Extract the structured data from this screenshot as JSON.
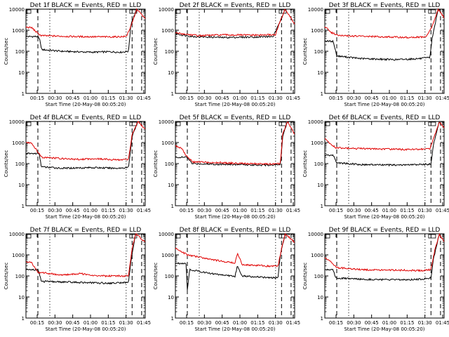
{
  "figure": {
    "background": "#ffffff",
    "axis_color": "#000000",
    "events_color": "#000000",
    "lld_color": "#e00000"
  },
  "chart_data": [
    {
      "type": "line",
      "title": "Det 1f BLACK = Events, RED = LLD",
      "xlabel": "Start Time (20-May-08 00:05:20)",
      "ylabel": "Counts/sec",
      "y_scale": "log",
      "ylim": [
        1,
        10000
      ],
      "x_ticks": [
        "00:15",
        "00:30",
        "00:45",
        "01:00",
        "01:15",
        "01:30",
        "01:45"
      ],
      "y_ticks": [
        "1",
        "10",
        "100",
        "1000",
        "10000"
      ],
      "series": [
        {
          "name": "Events",
          "color": "#000000",
          "values": [
            [
              0.1,
              500
            ],
            [
              0.12,
              300
            ],
            [
              0.13,
              120
            ],
            [
              0.3,
              100
            ],
            [
              0.55,
              90
            ],
            [
              0.7,
              95
            ],
            [
              0.8,
              90
            ],
            [
              0.86,
              100
            ],
            [
              0.88,
              2000
            ],
            [
              0.93,
              10000
            ]
          ]
        },
        {
          "name": "LLD",
          "color": "#e00000",
          "values": [
            [
              0.0,
              1400
            ],
            [
              0.05,
              1300
            ],
            [
              0.1,
              700
            ],
            [
              0.13,
              550
            ],
            [
              0.4,
              500
            ],
            [
              0.7,
              480
            ],
            [
              0.84,
              500
            ],
            [
              0.88,
              1500
            ],
            [
              0.93,
              10000
            ],
            [
              1.0,
              3500
            ]
          ]
        }
      ]
    },
    {
      "type": "line",
      "title": "Det 2f BLACK = Events, RED = LLD",
      "xlabel": "Start Time (20-May-08 00:05:20)",
      "ylabel": "Counts/sec",
      "y_scale": "log",
      "ylim": [
        1,
        10000
      ],
      "x_ticks": [
        "00:15",
        "00:30",
        "00:45",
        "01:00",
        "01:15",
        "01:30",
        "01:45"
      ],
      "y_ticks": [
        "1",
        "10",
        "100",
        "1000",
        "10000"
      ],
      "series": [
        {
          "name": "Events",
          "color": "#000000",
          "values": [
            [
              0.0,
              700
            ],
            [
              0.05,
              600
            ],
            [
              0.15,
              500
            ],
            [
              0.4,
              450
            ],
            [
              0.7,
              480
            ],
            [
              0.82,
              500
            ],
            [
              0.86,
              1500
            ],
            [
              0.92,
              10000
            ]
          ]
        },
        {
          "name": "LLD",
          "color": "#e00000",
          "values": [
            [
              0.0,
              750
            ],
            [
              0.08,
              650
            ],
            [
              0.2,
              550
            ],
            [
              0.4,
              600
            ],
            [
              0.7,
              580
            ],
            [
              0.84,
              620
            ],
            [
              0.87,
              2000
            ],
            [
              0.92,
              10000
            ],
            [
              1.0,
              2000
            ]
          ]
        }
      ]
    },
    {
      "type": "line",
      "title": "Det 3f BLACK = Events, RED = LLD",
      "xlabel": "Start Time (20-May-08 00:05:20)",
      "ylabel": "Counts/sec",
      "y_scale": "log",
      "ylim": [
        1,
        10000
      ],
      "x_ticks": [
        "00:15",
        "00:30",
        "00:45",
        "01:00",
        "01:15",
        "01:30",
        "01:45"
      ],
      "y_ticks": [
        "1",
        "10",
        "100",
        "1000",
        "10000"
      ],
      "series": [
        {
          "name": "Events",
          "color": "#000000",
          "values": [
            [
              0.07,
              300
            ],
            [
              0.1,
              60
            ],
            [
              0.3,
              45
            ],
            [
              0.6,
              40
            ],
            [
              0.8,
              45
            ],
            [
              0.88,
              50
            ],
            [
              0.9,
              400
            ],
            [
              0.95,
              10000
            ]
          ]
        },
        {
          "name": "LLD",
          "color": "#e00000",
          "values": [
            [
              0.0,
              1500
            ],
            [
              0.05,
              800
            ],
            [
              0.12,
              550
            ],
            [
              0.4,
              500
            ],
            [
              0.7,
              450
            ],
            [
              0.85,
              480
            ],
            [
              0.9,
              1500
            ],
            [
              0.95,
              10000
            ],
            [
              1.0,
              4000
            ]
          ]
        }
      ]
    },
    {
      "type": "line",
      "title": "Det 4f BLACK = Events, RED = LLD",
      "xlabel": "Start Time (20-May-08 00:05:20)",
      "ylabel": "Counts/sec",
      "y_scale": "log",
      "ylim": [
        1,
        10000
      ],
      "x_ticks": [
        "00:15",
        "00:30",
        "00:45",
        "01:00",
        "01:15",
        "01:30",
        "01:45"
      ],
      "y_ticks": [
        "1",
        "10",
        "100",
        "1000",
        "10000"
      ],
      "series": [
        {
          "name": "Events",
          "color": "#000000",
          "values": [
            [
              0.11,
              300
            ],
            [
              0.13,
              70
            ],
            [
              0.3,
              60
            ],
            [
              0.55,
              65
            ],
            [
              0.75,
              60
            ],
            [
              0.86,
              65
            ],
            [
              0.89,
              2000
            ],
            [
              0.94,
              10000
            ]
          ]
        },
        {
          "name": "LLD",
          "color": "#e00000",
          "values": [
            [
              0.0,
              1000
            ],
            [
              0.05,
              900
            ],
            [
              0.1,
              350
            ],
            [
              0.13,
              200
            ],
            [
              0.4,
              160
            ],
            [
              0.6,
              170
            ],
            [
              0.75,
              150
            ],
            [
              0.86,
              160
            ],
            [
              0.89,
              2500
            ],
            [
              0.94,
              10000
            ],
            [
              1.0,
              4000
            ]
          ]
        }
      ]
    },
    {
      "type": "line",
      "title": "Det 5f BLACK = Events, RED = LLD",
      "xlabel": "Start Time (20-May-08 00:05:20)",
      "ylabel": "Counts/sec",
      "y_scale": "log",
      "ylim": [
        1,
        10000
      ],
      "x_ticks": [
        "00:15",
        "00:30",
        "00:45",
        "01:00",
        "01:15",
        "01:30",
        "01:45"
      ],
      "y_ticks": [
        "1",
        "10",
        "100",
        "1000",
        "10000"
      ],
      "series": [
        {
          "name": "Events",
          "color": "#000000",
          "values": [
            [
              0.1,
              200
            ],
            [
              0.14,
              100
            ],
            [
              0.3,
              95
            ],
            [
              0.55,
              90
            ],
            [
              0.75,
              85
            ],
            [
              0.88,
              90
            ],
            [
              0.9,
              2000
            ],
            [
              0.94,
              10000
            ]
          ]
        },
        {
          "name": "LLD",
          "color": "#e00000",
          "values": [
            [
              0.0,
              700
            ],
            [
              0.05,
              550
            ],
            [
              0.1,
              200
            ],
            [
              0.15,
              120
            ],
            [
              0.4,
              110
            ],
            [
              0.6,
              100
            ],
            [
              0.8,
              95
            ],
            [
              0.88,
              100
            ],
            [
              0.9,
              2500
            ],
            [
              0.94,
              10000
            ],
            [
              1.0,
              2500
            ]
          ]
        }
      ]
    },
    {
      "type": "line",
      "title": "Det 6f BLACK = Events, RED = LLD",
      "xlabel": "Start Time (20-May-08 00:05:20)",
      "ylabel": "Counts/sec",
      "y_scale": "log",
      "ylim": [
        1,
        10000
      ],
      "x_ticks": [
        "00:15",
        "00:30",
        "00:45",
        "01:00",
        "01:15",
        "01:30",
        "01:45"
      ],
      "y_ticks": [
        "1",
        "10",
        "100",
        "1000",
        "10000"
      ],
      "series": [
        {
          "name": "Events",
          "color": "#000000",
          "values": [
            [
              0.07,
              250
            ],
            [
              0.1,
              110
            ],
            [
              0.3,
              90
            ],
            [
              0.6,
              85
            ],
            [
              0.8,
              90
            ],
            [
              0.89,
              95
            ],
            [
              0.91,
              800
            ],
            [
              0.96,
              10000
            ]
          ]
        },
        {
          "name": "LLD",
          "color": "#e00000",
          "values": [
            [
              0.0,
              1500
            ],
            [
              0.05,
              800
            ],
            [
              0.1,
              550
            ],
            [
              0.4,
              500
            ],
            [
              0.7,
              470
            ],
            [
              0.88,
              490
            ],
            [
              0.91,
              1500
            ],
            [
              0.96,
              10000
            ],
            [
              1.0,
              5000
            ]
          ]
        }
      ]
    },
    {
      "type": "line",
      "title": "Det 7f BLACK = Events, RED = LLD",
      "xlabel": "Start Time (20-May-08 00:05:20)",
      "ylabel": "Counts/sec",
      "y_scale": "log",
      "ylim": [
        1,
        10000
      ],
      "x_ticks": [
        "00:15",
        "00:30",
        "00:45",
        "01:00",
        "01:15",
        "01:30",
        "01:45"
      ],
      "y_ticks": [
        "1",
        "10",
        "100",
        "1000",
        "10000"
      ],
      "series": [
        {
          "name": "Events",
          "color": "#000000",
          "values": [
            [
              0.1,
              200
            ],
            [
              0.13,
              55
            ],
            [
              0.4,
              50
            ],
            [
              0.7,
              45
            ],
            [
              0.86,
              50
            ],
            [
              0.88,
              500
            ],
            [
              0.92,
              10000
            ]
          ]
        },
        {
          "name": "LLD",
          "color": "#e00000",
          "values": [
            [
              0.0,
              500
            ],
            [
              0.05,
              400
            ],
            [
              0.1,
              150
            ],
            [
              0.3,
              110
            ],
            [
              0.45,
              130
            ],
            [
              0.6,
              100
            ],
            [
              0.86,
              100
            ],
            [
              0.89,
              2000
            ],
            [
              0.92,
              10000
            ],
            [
              1.0,
              4000
            ]
          ]
        }
      ]
    },
    {
      "type": "line",
      "title": "Det 8f BLACK = Events, RED = LLD",
      "xlabel": "Start Time (20-May-08 00:05:20)",
      "ylabel": "Counts/sec",
      "y_scale": "log",
      "ylim": [
        1,
        10000
      ],
      "x_ticks": [
        "00:15",
        "00:30",
        "00:45",
        "01:00",
        "01:15",
        "01:30",
        "01:45"
      ],
      "y_ticks": [
        "1",
        "10",
        "100",
        "1000",
        "10000"
      ],
      "series": [
        {
          "name": "Events",
          "color": "#000000",
          "values": [
            [
              0.09,
              400
            ],
            [
              0.1,
              20
            ],
            [
              0.12,
              200
            ],
            [
              0.3,
              130
            ],
            [
              0.5,
              95
            ],
            [
              0.52,
              300
            ],
            [
              0.56,
              100
            ],
            [
              0.75,
              85
            ],
            [
              0.86,
              80
            ],
            [
              0.88,
              1000
            ],
            [
              0.92,
              10000
            ]
          ]
        },
        {
          "name": "LLD",
          "color": "#e00000",
          "values": [
            [
              0.0,
              2000
            ],
            [
              0.1,
              1000
            ],
            [
              0.3,
              600
            ],
            [
              0.5,
              400
            ],
            [
              0.52,
              1200
            ],
            [
              0.56,
              350
            ],
            [
              0.75,
              300
            ],
            [
              0.86,
              280
            ],
            [
              0.89,
              2000
            ],
            [
              0.92,
              10000
            ],
            [
              1.0,
              4000
            ]
          ]
        }
      ]
    },
    {
      "type": "line",
      "title": "Det 9f BLACK = Events, RED = LLD",
      "xlabel": "Start Time (20-May-08 00:05:20)",
      "ylabel": "Counts/sec",
      "y_scale": "log",
      "ylim": [
        1,
        10000
      ],
      "x_ticks": [
        "00:15",
        "00:30",
        "00:45",
        "01:00",
        "01:15",
        "01:30",
        "01:45"
      ],
      "y_ticks": [
        "1",
        "10",
        "100",
        "1000",
        "10000"
      ],
      "series": [
        {
          "name": "Events",
          "color": "#000000",
          "values": [
            [
              0.07,
              200
            ],
            [
              0.09,
              80
            ],
            [
              0.3,
              70
            ],
            [
              0.6,
              65
            ],
            [
              0.8,
              70
            ],
            [
              0.89,
              80
            ],
            [
              0.91,
              600
            ],
            [
              0.96,
              10000
            ]
          ]
        },
        {
          "name": "LLD",
          "color": "#e00000",
          "values": [
            [
              0.0,
              700
            ],
            [
              0.05,
              500
            ],
            [
              0.1,
              250
            ],
            [
              0.3,
              200
            ],
            [
              0.6,
              190
            ],
            [
              0.8,
              180
            ],
            [
              0.89,
              200
            ],
            [
              0.92,
              1500
            ],
            [
              0.96,
              10000
            ],
            [
              1.0,
              4000
            ]
          ]
        }
      ]
    }
  ]
}
